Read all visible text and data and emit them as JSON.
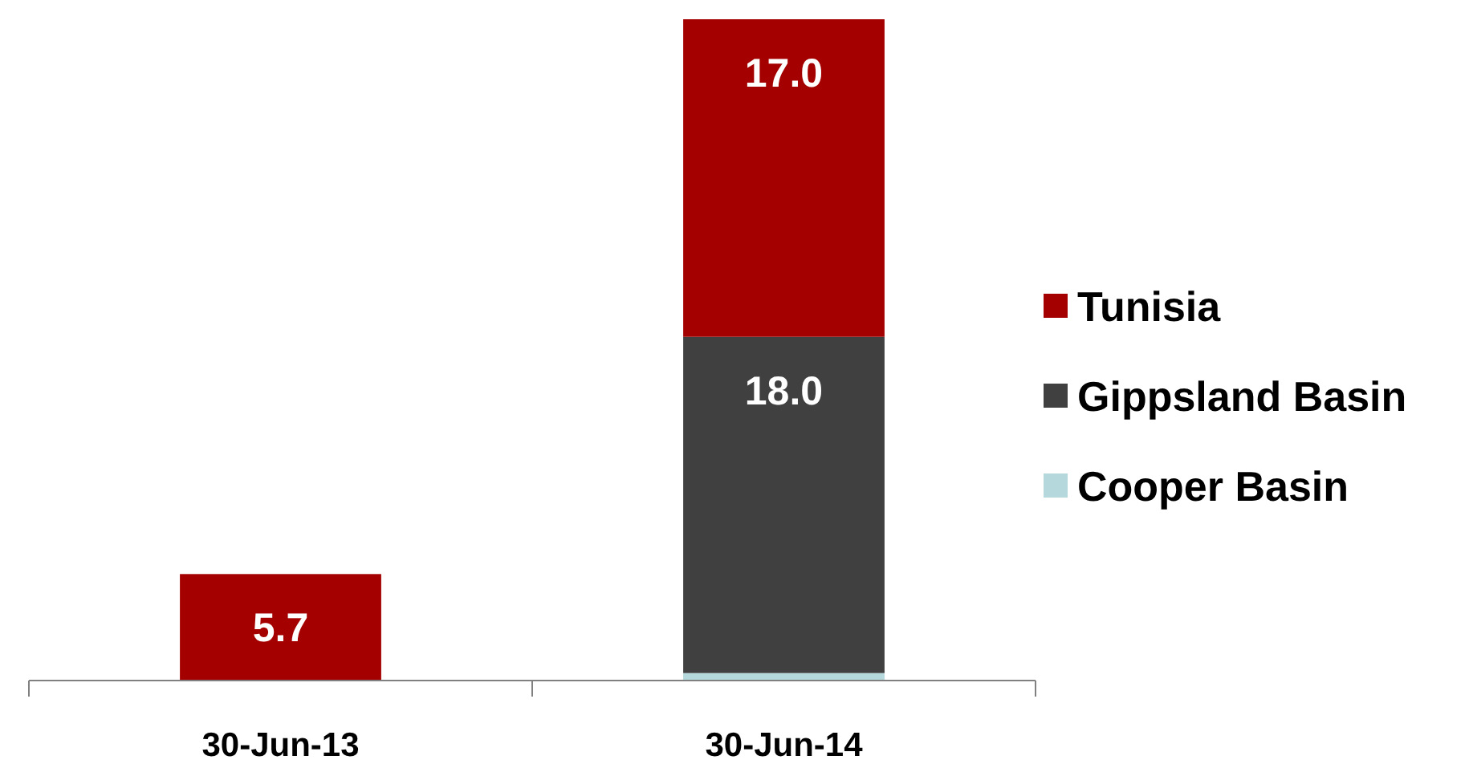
{
  "chart_data": {
    "type": "bar",
    "stacked": true,
    "categories": [
      "30-Jun-13",
      "30-Jun-14"
    ],
    "series": [
      {
        "name": "Cooper Basin",
        "color": "#b4d8dc",
        "values": [
          null,
          0.4
        ],
        "value_labels": [
          null,
          null
        ]
      },
      {
        "name": "Gippsland Basin",
        "color": "#404040",
        "values": [
          null,
          18.0
        ],
        "value_labels": [
          null,
          "18.0"
        ]
      },
      {
        "name": "Tunisia",
        "color": "#a50000",
        "values": [
          5.7,
          17.0
        ],
        "value_labels": [
          "5.7",
          "17.0"
        ]
      }
    ],
    "legend": "right"
  }
}
